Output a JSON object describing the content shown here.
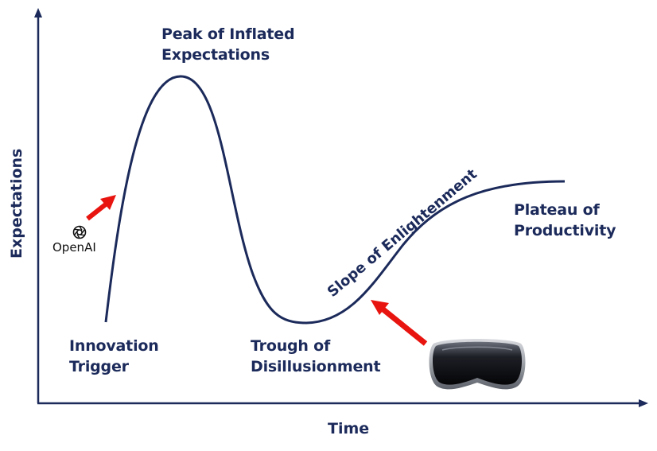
{
  "axes": {
    "y_title": "Expectations",
    "x_title": "Time",
    "color": "#1b2a5a"
  },
  "phases": {
    "innovation_trigger": [
      "Innovation",
      "Trigger"
    ],
    "peak": [
      "Peak of Inflated",
      "Expectations"
    ],
    "trough": [
      "Trough of",
      "Disillusionment"
    ],
    "slope": "Slope of Enlightenment",
    "plateau": [
      "Plateau of",
      "Productivity"
    ]
  },
  "markers": {
    "openai": {
      "logo_text": "OpenAI",
      "icon": "openai-logo-icon",
      "arrow_color": "#e8140f"
    },
    "headset": {
      "icon": "vr-headset-icon",
      "arrow_color": "#e8140f"
    }
  }
}
